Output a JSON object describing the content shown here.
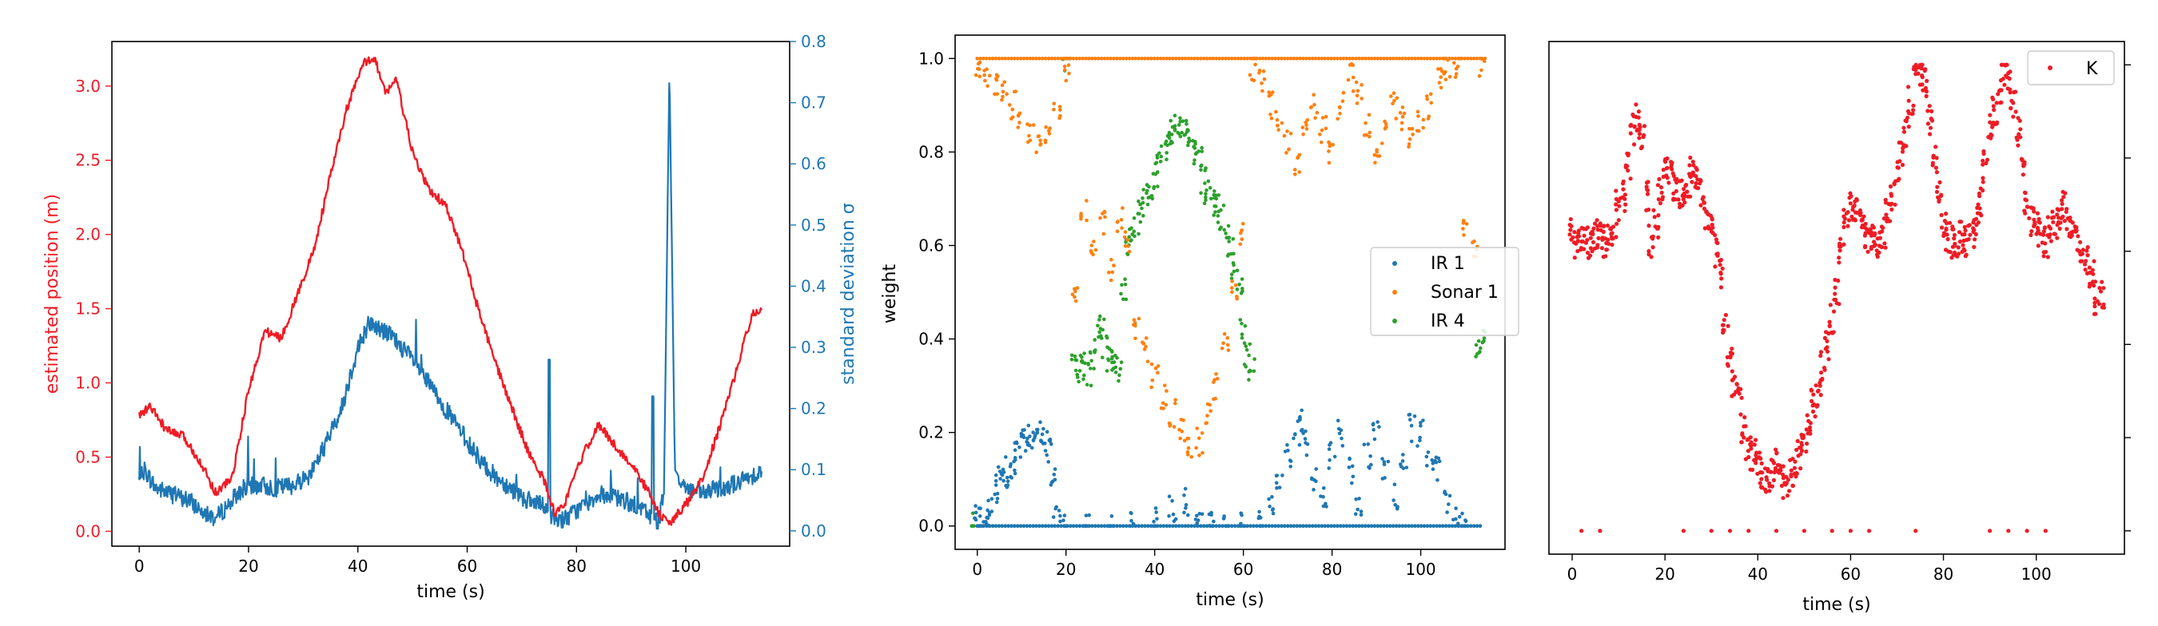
{
  "chart_data": [
    {
      "type": "line",
      "title": "",
      "xlabel": "time (s)",
      "ylabel_left": "estimated position (m)",
      "ylabel_right": "standard deviation σ",
      "xlim": [
        -5,
        119
      ],
      "ylim_left": [
        -0.1,
        3.3
      ],
      "ylim_right": [
        -0.025,
        0.8
      ],
      "x_ticks": [
        "0",
        "20",
        "40",
        "60",
        "80",
        "100"
      ],
      "y_ticks_left": [
        "0.0",
        "0.5",
        "1.0",
        "1.5",
        "2.0",
        "2.5",
        "3.0"
      ],
      "y_ticks_right": [
        "0.0",
        "0.1",
        "0.2",
        "0.3",
        "0.4",
        "0.5",
        "0.6",
        "0.7",
        "0.8"
      ],
      "grid": false,
      "series": [
        {
          "name": "",
          "axis": "left",
          "color": "#ee1c25",
          "x": [
            0,
            2,
            5,
            8,
            11,
            14,
            17,
            20,
            23,
            26,
            29,
            32,
            35,
            38,
            41,
            43,
            45,
            47,
            50,
            53,
            56,
            59,
            62,
            65,
            68,
            71,
            74,
            76,
            78,
            81,
            84,
            87,
            90,
            93,
            95,
            97,
            100,
            103,
            106,
            109,
            112,
            114
          ],
          "y": [
            0.78,
            0.84,
            0.68,
            0.64,
            0.48,
            0.26,
            0.36,
            0.95,
            1.35,
            1.3,
            1.6,
            1.9,
            2.4,
            2.85,
            3.15,
            3.2,
            2.95,
            3.05,
            2.55,
            2.3,
            2.2,
            1.9,
            1.5,
            1.15,
            0.85,
            0.55,
            0.35,
            0.12,
            0.2,
            0.5,
            0.72,
            0.58,
            0.45,
            0.28,
            0.12,
            0.05,
            0.18,
            0.35,
            0.68,
            1.05,
            1.45,
            1.52
          ]
        },
        {
          "name": "",
          "axis": "right",
          "color": "#1f77b4",
          "x": [
            0,
            1,
            3,
            6,
            9,
            12,
            14,
            16,
            19,
            22,
            25,
            28,
            31,
            34,
            37,
            40,
            42,
            44,
            46,
            48,
            50,
            53,
            56,
            59,
            62,
            65,
            68,
            71,
            74,
            76,
            78,
            81,
            84,
            87,
            90,
            93,
            95,
            96,
            97,
            98,
            100,
            103,
            106,
            110,
            114
          ],
          "y": [
            0.08,
            0.1,
            0.07,
            0.06,
            0.05,
            0.03,
            0.02,
            0.04,
            0.07,
            0.075,
            0.07,
            0.075,
            0.09,
            0.14,
            0.2,
            0.3,
            0.34,
            0.33,
            0.32,
            0.3,
            0.28,
            0.24,
            0.2,
            0.16,
            0.12,
            0.09,
            0.07,
            0.05,
            0.04,
            0.02,
            0.02,
            0.04,
            0.06,
            0.055,
            0.045,
            0.03,
            0.015,
            0.06,
            0.76,
            0.1,
            0.07,
            0.06,
            0.07,
            0.08,
            0.1
          ]
        }
      ]
    },
    {
      "type": "scatter",
      "title": "",
      "xlabel": "time (s)",
      "ylabel": "weight",
      "xlim": [
        -5,
        119
      ],
      "ylim": [
        -0.05,
        1.05
      ],
      "x_ticks": [
        "0",
        "20",
        "40",
        "60",
        "80",
        "100"
      ],
      "y_ticks": [
        "0.0",
        "0.2",
        "0.4",
        "0.6",
        "0.8",
        "1.0"
      ],
      "grid": false,
      "legend": "center-right",
      "series": [
        {
          "name": "IR 1",
          "color": "#1f77b4",
          "baseline": 0.0,
          "x": [
            0,
            1,
            2,
            3,
            4,
            5,
            6,
            7,
            8,
            9,
            10,
            11,
            12,
            13,
            14,
            15,
            16,
            17,
            18,
            20,
            25,
            30,
            35,
            40,
            44,
            47,
            50,
            53,
            56,
            60,
            64,
            66,
            68,
            70,
            72,
            73,
            74,
            76,
            78,
            80,
            82,
            84,
            86,
            88,
            90,
            92,
            94,
            96,
            98,
            100,
            102,
            104,
            106,
            108,
            110
          ],
          "y": [
            0.02,
            0.01,
            0.03,
            0.05,
            0.08,
            0.1,
            0.12,
            0.1,
            0.13,
            0.15,
            0.17,
            0.18,
            0.2,
            0.19,
            0.2,
            0.18,
            0.16,
            0.1,
            0.03,
            0.0,
            0.0,
            0.0,
            0.0,
            0.02,
            0.04,
            0.05,
            0.03,
            0.01,
            0.0,
            0.0,
            0.01,
            0.04,
            0.1,
            0.15,
            0.2,
            0.22,
            0.18,
            0.1,
            0.06,
            0.15,
            0.2,
            0.12,
            0.05,
            0.15,
            0.2,
            0.12,
            0.06,
            0.15,
            0.21,
            0.2,
            0.15,
            0.12,
            0.05,
            0.01,
            0.0
          ]
        },
        {
          "name": "Sonar 1",
          "color": "#ff7f0e",
          "baseline": 1.0,
          "x": [
            0,
            2,
            4,
            6,
            8,
            10,
            12,
            14,
            16,
            18,
            20,
            22,
            24,
            26,
            28,
            30,
            32,
            34,
            36,
            38,
            40,
            42,
            44,
            46,
            48,
            50,
            52,
            54,
            56,
            58,
            60,
            62,
            64,
            66,
            68,
            70,
            72,
            74,
            76,
            78,
            80,
            82,
            84,
            86,
            88,
            90,
            92,
            94,
            96,
            98,
            100,
            102,
            104,
            106,
            108,
            110,
            112,
            114
          ],
          "y": [
            0.98,
            0.97,
            0.95,
            0.93,
            0.9,
            0.87,
            0.85,
            0.82,
            0.84,
            0.9,
            0.98,
            0.5,
            0.67,
            0.6,
            0.65,
            0.55,
            0.66,
            0.6,
            0.42,
            0.38,
            0.32,
            0.28,
            0.24,
            0.2,
            0.16,
            0.18,
            0.24,
            0.3,
            0.4,
            0.5,
            0.62,
            0.98,
            0.95,
            0.9,
            0.86,
            0.82,
            0.78,
            0.86,
            0.9,
            0.85,
            0.8,
            0.9,
            0.96,
            0.92,
            0.86,
            0.8,
            0.84,
            0.9,
            0.87,
            0.82,
            0.86,
            0.9,
            0.95,
            0.98,
            0.99,
            0.65,
            0.6,
            0.99
          ]
        },
        {
          "name": "IR 4",
          "color": "#2ca02c",
          "baseline": 0.0,
          "x": [
            -1,
            20,
            22,
            23,
            24,
            25,
            26,
            27,
            28,
            29,
            30,
            31,
            32,
            33,
            34,
            35,
            36,
            37,
            38,
            39,
            40,
            41,
            42,
            43,
            44,
            45,
            46,
            47,
            48,
            49,
            50,
            51,
            52,
            53,
            54,
            55,
            56,
            57,
            58,
            59,
            60,
            61,
            62,
            113,
            114
          ],
          "y": [
            0.0,
            0.99,
            0.34,
            0.33,
            0.34,
            0.32,
            0.35,
            0.4,
            0.42,
            0.38,
            0.36,
            0.34,
            0.33,
            0.5,
            0.6,
            0.63,
            0.65,
            0.68,
            0.7,
            0.72,
            0.75,
            0.78,
            0.8,
            0.82,
            0.84,
            0.85,
            0.86,
            0.84,
            0.82,
            0.8,
            0.78,
            0.74,
            0.72,
            0.7,
            0.68,
            0.66,
            0.62,
            0.6,
            0.55,
            0.5,
            0.42,
            0.36,
            0.34,
            0.38,
            0.4
          ]
        }
      ]
    },
    {
      "type": "scatter",
      "title": "",
      "xlabel": "time (s)",
      "ylabel": "",
      "xlim": [
        -5,
        119
      ],
      "ylim": [
        -0.05,
        1.05
      ],
      "x_ticks": [
        "0",
        "20",
        "40",
        "60",
        "80",
        "100"
      ],
      "y_ticks": [],
      "grid": false,
      "legend": "top-right",
      "series": [
        {
          "name": "K",
          "color": "#ee1c25",
          "x": [
            0,
            1,
            2,
            3,
            4,
            5,
            6,
            7,
            8,
            9,
            10,
            11,
            12,
            13,
            14,
            15,
            16,
            17,
            18,
            19,
            20,
            21,
            22,
            23,
            24,
            25,
            26,
            27,
            28,
            29,
            30,
            31,
            32,
            33,
            34,
            35,
            36,
            37,
            38,
            39,
            40,
            41,
            42,
            43,
            44,
            45,
            46,
            47,
            48,
            49,
            50,
            51,
            52,
            53,
            54,
            55,
            56,
            57,
            58,
            59,
            60,
            61,
            62,
            63,
            64,
            65,
            66,
            67,
            68,
            69,
            70,
            71,
            72,
            73,
            74,
            75,
            76,
            77,
            78,
            79,
            80,
            81,
            82,
            83,
            84,
            85,
            86,
            87,
            88,
            89,
            90,
            91,
            92,
            93,
            94,
            95,
            96,
            97,
            98,
            99,
            100,
            101,
            102,
            103,
            104,
            105,
            106,
            107,
            108,
            109,
            110,
            111,
            112,
            113,
            114
          ],
          "y": [
            0.64,
            0.62,
            0.63,
            0.62,
            0.62,
            0.64,
            0.64,
            0.62,
            0.63,
            0.66,
            0.7,
            0.72,
            0.78,
            0.86,
            0.88,
            0.85,
            0.72,
            0.62,
            0.66,
            0.72,
            0.78,
            0.76,
            0.74,
            0.72,
            0.7,
            0.75,
            0.78,
            0.76,
            0.72,
            0.68,
            0.66,
            0.6,
            0.55,
            0.45,
            0.38,
            0.32,
            0.28,
            0.22,
            0.18,
            0.16,
            0.14,
            0.12,
            0.1,
            0.12,
            0.14,
            0.12,
            0.1,
            0.12,
            0.14,
            0.16,
            0.2,
            0.22,
            0.28,
            0.3,
            0.35,
            0.4,
            0.45,
            0.52,
            0.6,
            0.66,
            0.7,
            0.68,
            0.66,
            0.64,
            0.62,
            0.63,
            0.62,
            0.64,
            0.68,
            0.72,
            0.76,
            0.8,
            0.86,
            0.92,
            0.98,
            0.99,
            0.96,
            0.88,
            0.8,
            0.72,
            0.66,
            0.63,
            0.62,
            0.62,
            0.63,
            0.62,
            0.64,
            0.66,
            0.7,
            0.78,
            0.86,
            0.9,
            0.95,
            0.99,
            0.97,
            0.92,
            0.86,
            0.78,
            0.7,
            0.66,
            0.65,
            0.64,
            0.62,
            0.64,
            0.66,
            0.68,
            0.7,
            0.66,
            0.64,
            0.62,
            0.6,
            0.58,
            0.55,
            0.5,
            0.5
          ]
        }
      ]
    }
  ]
}
